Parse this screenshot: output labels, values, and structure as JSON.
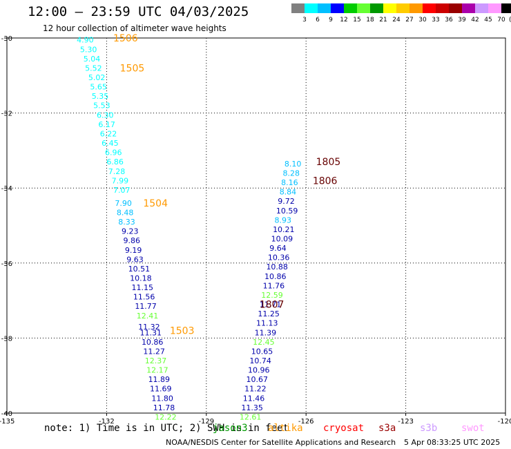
{
  "header": {
    "title": "12:00 — 23:59 UTC 04/03/2025",
    "subtitle": "12 hour collection of altimeter wave heights"
  },
  "legend": {
    "unit": "(ft)",
    "ticks": [
      "3",
      "6",
      "9",
      "12",
      "15",
      "18",
      "21",
      "24",
      "27",
      "30",
      "33",
      "36",
      "39",
      "42",
      "45",
      "70"
    ],
    "colors": [
      "#808080",
      "#00ffff",
      "#00bfff",
      "#0000ff",
      "#00cc00",
      "#66ff33",
      "#009900",
      "#ffff00",
      "#ffcc00",
      "#ff9900",
      "#ff0000",
      "#cc0000",
      "#990000",
      "#aa00aa",
      "#cc99ff",
      "#ff99ff",
      "#000000"
    ]
  },
  "map": {
    "lon_range": [
      -135,
      -120
    ],
    "lat_range": [
      -40,
      -30
    ],
    "x_ticks": [
      "-135",
      "-132",
      "-129",
      "-126",
      "-123",
      "-120"
    ],
    "y_ticks": [
      "-30",
      "-32",
      "-34",
      "-36",
      "-38",
      "-40"
    ]
  },
  "chart_data": {
    "type": "scatter",
    "xlabel": "",
    "ylabel": "",
    "passes": [
      {
        "id": "1506",
        "lon": -131.8,
        "lat": -30.0,
        "color": "#ff9900"
      },
      {
        "id": "1505",
        "lon": -131.6,
        "lat": -30.8,
        "color": "#ff9900"
      },
      {
        "id": "1504",
        "lon": -130.9,
        "lat": -34.4,
        "color": "#ff9900"
      },
      {
        "id": "1503",
        "lon": -130.1,
        "lat": -37.8,
        "color": "#ff9900"
      },
      {
        "id": "1805",
        "lon": -125.7,
        "lat": -33.3,
        "color": "#660000"
      },
      {
        "id": "1806",
        "lon": -125.8,
        "lat": -33.8,
        "color": "#660000"
      },
      {
        "id": "1807",
        "lon": -127.4,
        "lat": -37.1,
        "color": "#660000"
      }
    ],
    "track_1": [
      {
        "lon": -132.9,
        "lat": -30.05,
        "v": "4.90",
        "c": "#00ffff"
      },
      {
        "lon": -132.8,
        "lat": -30.3,
        "v": "5.30",
        "c": "#00ffff"
      },
      {
        "lon": -132.7,
        "lat": -30.55,
        "v": "5.04",
        "c": "#00ffff"
      },
      {
        "lon": -132.65,
        "lat": -30.8,
        "v": "5.52",
        "c": "#00ffff"
      },
      {
        "lon": -132.55,
        "lat": -31.05,
        "v": "5.02",
        "c": "#00ffff"
      },
      {
        "lon": -132.5,
        "lat": -31.3,
        "v": "5.65",
        "c": "#00ffff"
      },
      {
        "lon": -132.45,
        "lat": -31.55,
        "v": "5.35",
        "c": "#00ffff"
      },
      {
        "lon": -132.4,
        "lat": -31.8,
        "v": "5.53",
        "c": "#00ffff"
      },
      {
        "lon": -132.3,
        "lat": -32.05,
        "v": "6.30",
        "c": "#00ffff"
      },
      {
        "lon": -132.25,
        "lat": -32.3,
        "v": "6.17",
        "c": "#00ffff"
      },
      {
        "lon": -132.2,
        "lat": -32.55,
        "v": "6.22",
        "c": "#00ffff"
      },
      {
        "lon": -132.15,
        "lat": -32.8,
        "v": "6.45",
        "c": "#00ffff"
      },
      {
        "lon": -132.05,
        "lat": -33.05,
        "v": "6.96",
        "c": "#00ffff"
      },
      {
        "lon": -132.0,
        "lat": -33.3,
        "v": "6.86",
        "c": "#00ffff"
      },
      {
        "lon": -131.95,
        "lat": -33.55,
        "v": "7.28",
        "c": "#00ffff"
      },
      {
        "lon": -131.85,
        "lat": -33.8,
        "v": "7.99",
        "c": "#00ffff"
      },
      {
        "lon": -131.8,
        "lat": -34.05,
        "v": "7.07",
        "c": "#00ffff"
      },
      {
        "lon": -131.75,
        "lat": -34.4,
        "v": "7.90",
        "c": "#00bfff"
      },
      {
        "lon": -131.7,
        "lat": -34.65,
        "v": "8.48",
        "c": "#00bfff"
      },
      {
        "lon": -131.65,
        "lat": -34.9,
        "v": "8.33",
        "c": "#00bfff"
      },
      {
        "lon": -131.55,
        "lat": -35.15,
        "v": "9.23",
        "c": "#0000aa"
      },
      {
        "lon": -131.5,
        "lat": -35.4,
        "v": "9.86",
        "c": "#0000aa"
      },
      {
        "lon": -131.45,
        "lat": -35.65,
        "v": "9.19",
        "c": "#0000aa"
      },
      {
        "lon": -131.4,
        "lat": -35.9,
        "v": "9.63",
        "c": "#0000aa"
      },
      {
        "lon": -131.35,
        "lat": -36.15,
        "v": "10.51",
        "c": "#0000aa"
      },
      {
        "lon": -131.3,
        "lat": -36.4,
        "v": "10.18",
        "c": "#0000aa"
      },
      {
        "lon": -131.25,
        "lat": -36.65,
        "v": "11.15",
        "c": "#0000aa"
      },
      {
        "lon": -131.2,
        "lat": -36.9,
        "v": "11.56",
        "c": "#0000aa"
      },
      {
        "lon": -131.15,
        "lat": -37.15,
        "v": "11.77",
        "c": "#0000aa"
      },
      {
        "lon": -131.1,
        "lat": -37.4,
        "v": "12.41",
        "c": "#66ff33"
      },
      {
        "lon": -131.05,
        "lat": -37.7,
        "v": "11.32",
        "c": "#0000aa"
      },
      {
        "lon": -131.0,
        "lat": -37.85,
        "v": "11.31",
        "c": "#0000aa"
      },
      {
        "lon": -130.95,
        "lat": -38.1,
        "v": "10.86",
        "c": "#0000aa"
      },
      {
        "lon": -130.9,
        "lat": -38.35,
        "v": "11.27",
        "c": "#0000aa"
      },
      {
        "lon": -130.85,
        "lat": -38.6,
        "v": "12.37",
        "c": "#66ff33"
      },
      {
        "lon": -130.8,
        "lat": -38.85,
        "v": "12.17",
        "c": "#66ff33"
      },
      {
        "lon": -130.75,
        "lat": -39.1,
        "v": "11.89",
        "c": "#0000aa"
      },
      {
        "lon": -130.7,
        "lat": -39.35,
        "v": "11.69",
        "c": "#0000aa"
      },
      {
        "lon": -130.65,
        "lat": -39.6,
        "v": "11.80",
        "c": "#0000aa"
      },
      {
        "lon": -130.6,
        "lat": -39.85,
        "v": "11.78",
        "c": "#0000aa"
      },
      {
        "lon": -130.55,
        "lat": -40.1,
        "v": "12.22",
        "c": "#66ff33"
      }
    ],
    "track_2": [
      {
        "lon": -126.65,
        "lat": -33.35,
        "v": "8.10",
        "c": "#00bfff"
      },
      {
        "lon": -126.7,
        "lat": -33.6,
        "v": "8.28",
        "c": "#00bfff"
      },
      {
        "lon": -126.75,
        "lat": -33.85,
        "v": "8.16",
        "c": "#00bfff"
      },
      {
        "lon": -126.8,
        "lat": -34.1,
        "v": "8.84",
        "c": "#00bfff"
      },
      {
        "lon": -126.85,
        "lat": -34.35,
        "v": "9.72",
        "c": "#0000aa"
      },
      {
        "lon": -126.9,
        "lat": -34.6,
        "v": "10.59",
        "c": "#0000aa"
      },
      {
        "lon": -126.95,
        "lat": -34.85,
        "v": "8.93",
        "c": "#00bfff"
      },
      {
        "lon": -127.0,
        "lat": -35.1,
        "v": "10.21",
        "c": "#0000aa"
      },
      {
        "lon": -127.05,
        "lat": -35.35,
        "v": "10.09",
        "c": "#0000aa"
      },
      {
        "lon": -127.1,
        "lat": -35.6,
        "v": "9.64",
        "c": "#0000aa"
      },
      {
        "lon": -127.15,
        "lat": -35.85,
        "v": "10.36",
        "c": "#0000aa"
      },
      {
        "lon": -127.2,
        "lat": -36.1,
        "v": "10.88",
        "c": "#0000aa"
      },
      {
        "lon": -127.25,
        "lat": -36.35,
        "v": "10.86",
        "c": "#0000aa"
      },
      {
        "lon": -127.3,
        "lat": -36.6,
        "v": "11.76",
        "c": "#0000aa"
      },
      {
        "lon": -127.35,
        "lat": -36.85,
        "v": "12.59",
        "c": "#66ff33"
      },
      {
        "lon": -127.4,
        "lat": -37.1,
        "v": "11.71",
        "c": "#0000aa"
      },
      {
        "lon": -127.45,
        "lat": -37.35,
        "v": "11.25",
        "c": "#0000aa"
      },
      {
        "lon": -127.5,
        "lat": -37.6,
        "v": "11.13",
        "c": "#0000aa"
      },
      {
        "lon": -127.55,
        "lat": -37.85,
        "v": "11.39",
        "c": "#0000aa"
      },
      {
        "lon": -127.6,
        "lat": -38.1,
        "v": "12.45",
        "c": "#66ff33"
      },
      {
        "lon": -127.65,
        "lat": -38.35,
        "v": "10.65",
        "c": "#0000aa"
      },
      {
        "lon": -127.7,
        "lat": -38.6,
        "v": "10.74",
        "c": "#0000aa"
      },
      {
        "lon": -127.75,
        "lat": -38.85,
        "v": "10.96",
        "c": "#0000aa"
      },
      {
        "lon": -127.8,
        "lat": -39.1,
        "v": "10.67",
        "c": "#0000aa"
      },
      {
        "lon": -127.85,
        "lat": -39.35,
        "v": "11.22",
        "c": "#0000aa"
      },
      {
        "lon": -127.9,
        "lat": -39.6,
        "v": "11.46",
        "c": "#0000aa"
      },
      {
        "lon": -127.95,
        "lat": -39.85,
        "v": "11.35",
        "c": "#0000aa"
      },
      {
        "lon": -128.0,
        "lat": -40.1,
        "v": "12.61",
        "c": "#66ff33"
      }
    ]
  },
  "note": {
    "text": "note: 1) Time is in UTC; 2) SWH is in feet",
    "satellites": [
      {
        "name": "jason3",
        "color": "#009900"
      },
      {
        "name": "altika",
        "color": "#ff9900"
      },
      {
        "name": "cryosat",
        "color": "#ff0000"
      },
      {
        "name": "s3a",
        "color": "#990000"
      },
      {
        "name": "s3b",
        "color": "#cc99ff"
      },
      {
        "name": "swot",
        "color": "#ff99ff"
      }
    ]
  },
  "footer": {
    "agency": "NOAA/NESDIS Center for Satellite Applications and Research",
    "time": "5 Apr 08:33:25 UTC 2025"
  }
}
